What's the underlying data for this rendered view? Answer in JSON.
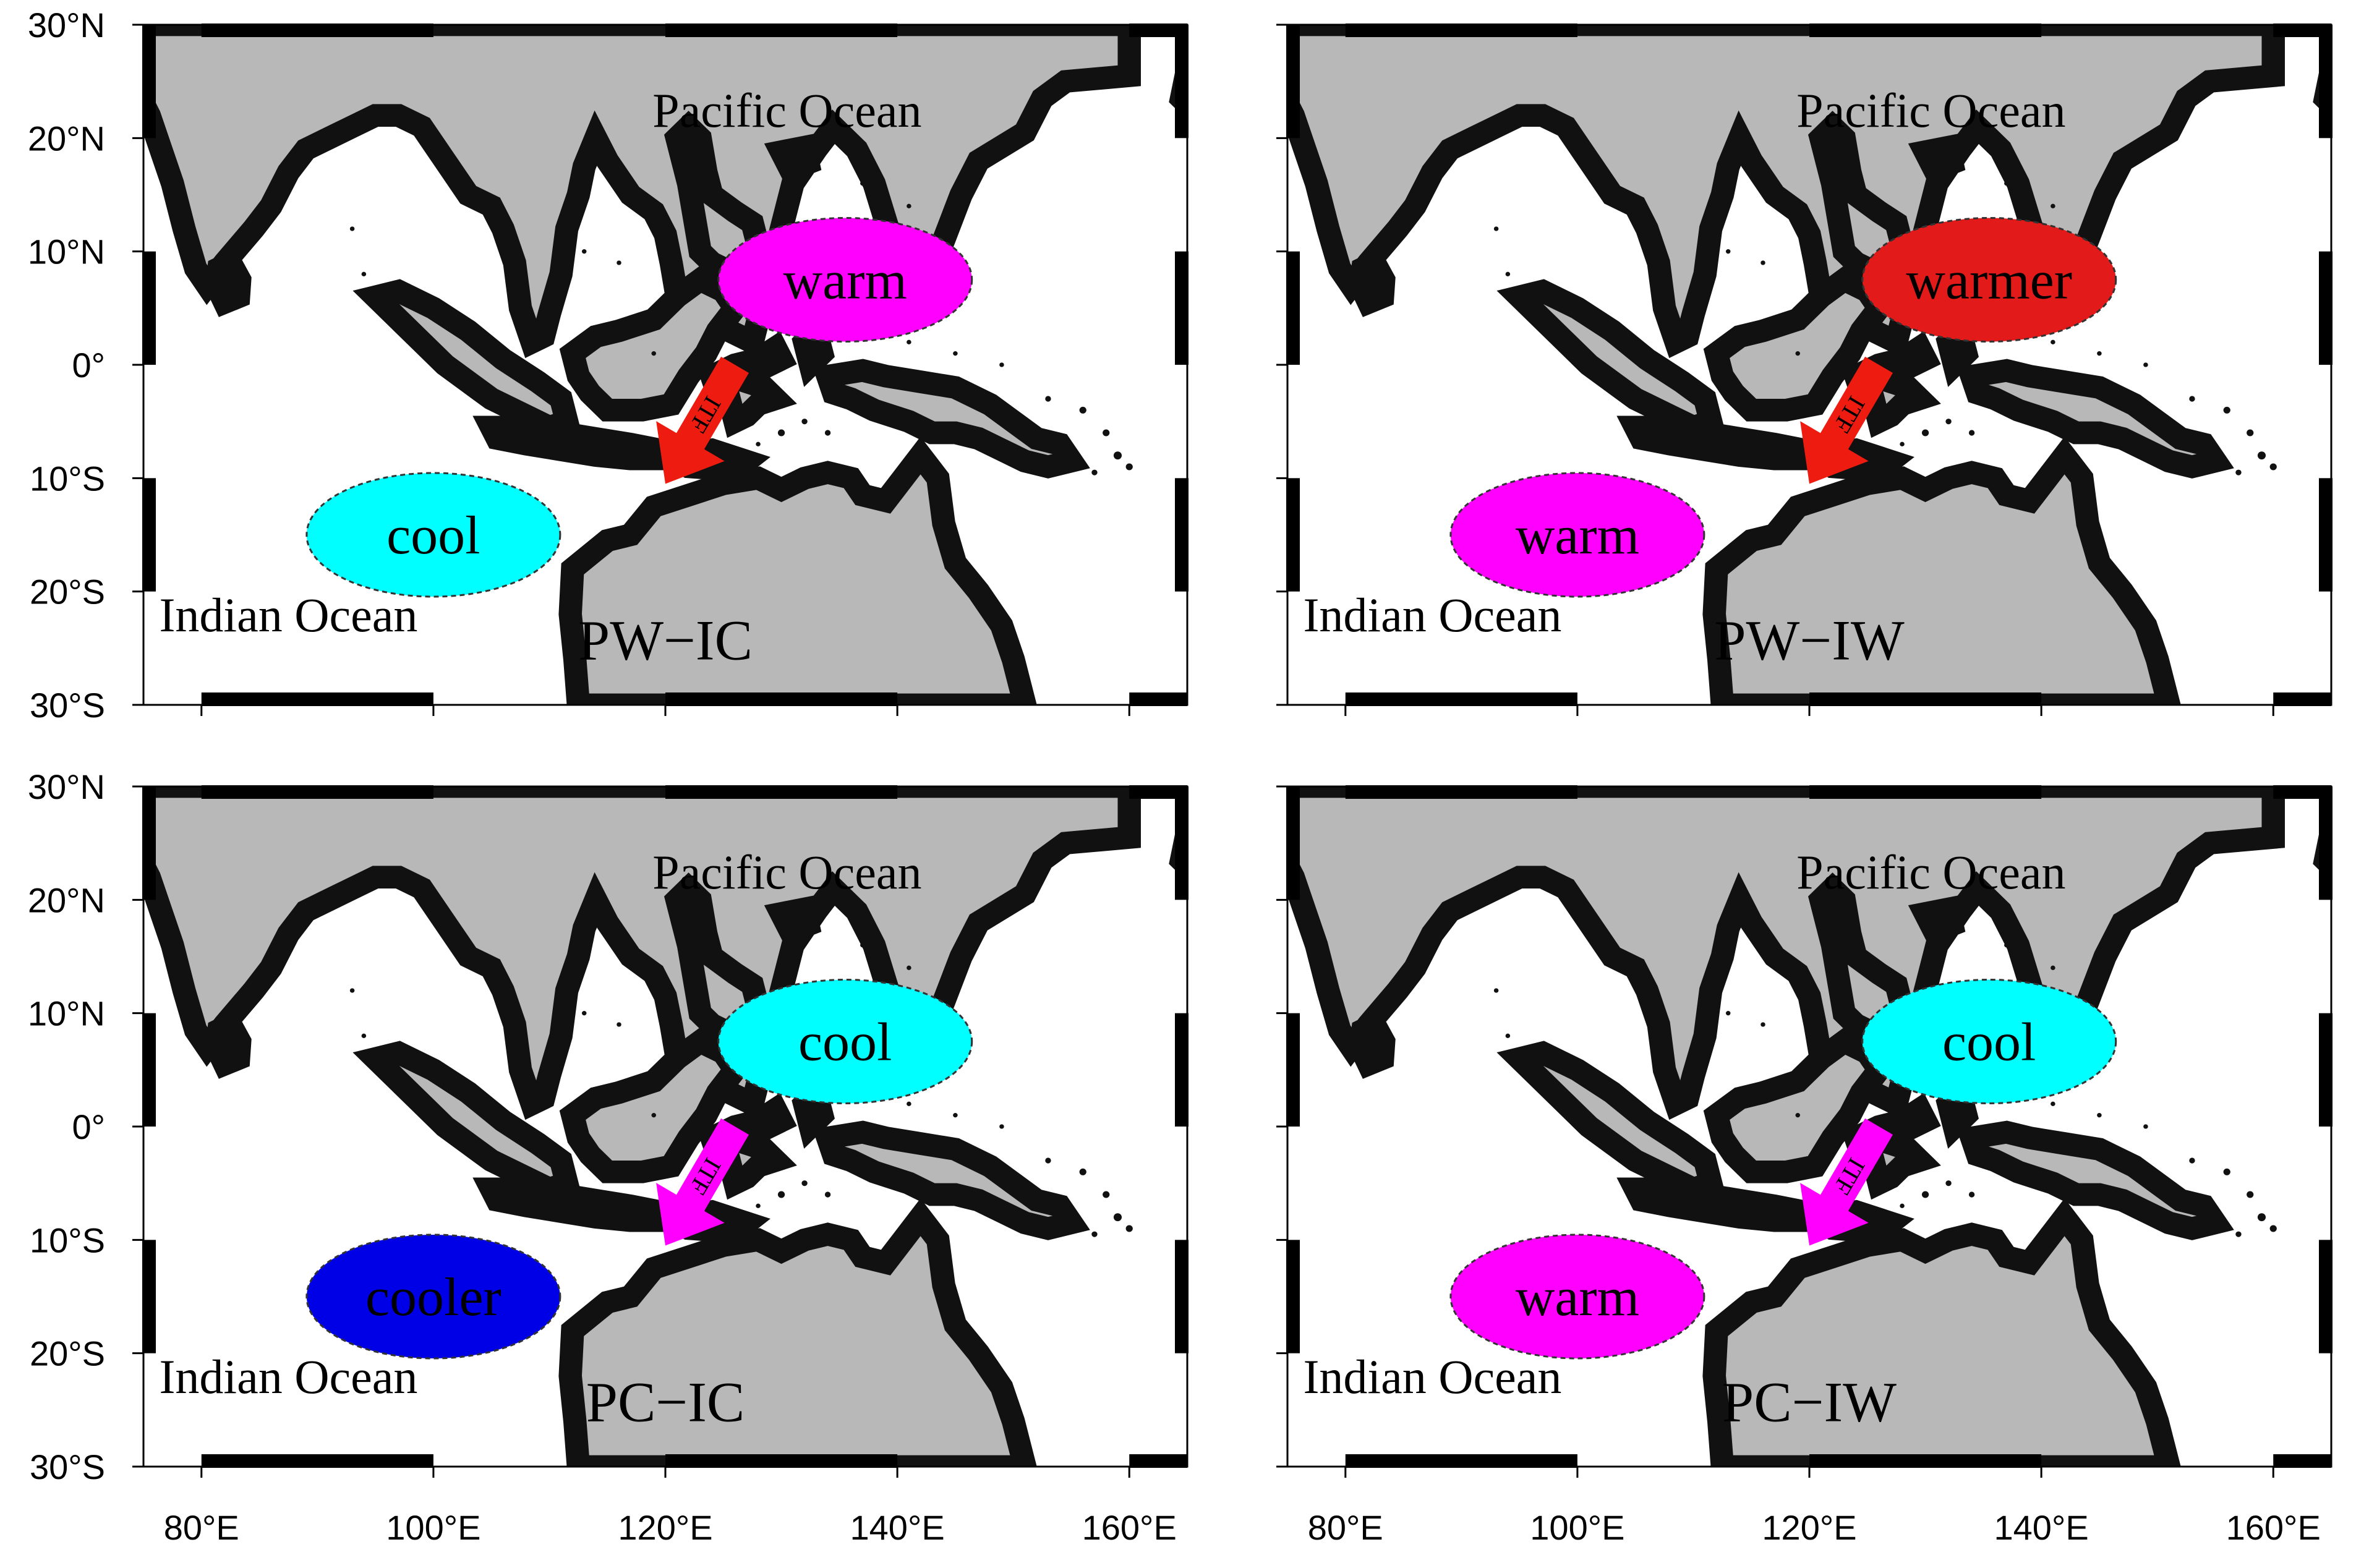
{
  "colors": {
    "land": "#b8b8b8",
    "coastline": "#111111",
    "warm": "#ff00ff",
    "warmer": "#e21a1a",
    "cool": "#00ffff",
    "cooler": "#0000e6",
    "arrow_red": "#ee1c10",
    "arrow_magenta": "#ff00ff"
  },
  "axes": {
    "lat_labels": [
      "30°N",
      "20°N",
      "10°N",
      "0°",
      "10°S",
      "20°S",
      "30°S"
    ],
    "lon_labels": [
      "80°E",
      "100°E",
      "120°E",
      "140°E",
      "160°E"
    ]
  },
  "labels": {
    "pacific": "Pacific Ocean",
    "indian": "Indian Ocean",
    "itf": "ITF"
  },
  "panels": [
    {
      "id": "pw-ic",
      "title": "PW−IC",
      "pacific": {
        "text": "warm",
        "color": "#ff00ff"
      },
      "indian": {
        "text": "cool",
        "color": "#00ffff"
      },
      "arrow_color": "#ee1c10"
    },
    {
      "id": "pw-iw",
      "title": "PW−IW",
      "pacific": {
        "text": "warmer",
        "color": "#e21a1a"
      },
      "indian": {
        "text": "warm",
        "color": "#ff00ff"
      },
      "arrow_color": "#ee1c10"
    },
    {
      "id": "pc-ic",
      "title": "PC−IC",
      "pacific": {
        "text": "cool",
        "color": "#00ffff"
      },
      "indian": {
        "text": "cooler",
        "color": "#0000e6"
      },
      "arrow_color": "#ff00ff"
    },
    {
      "id": "pc-iw",
      "title": "PC−IW",
      "pacific": {
        "text": "cool",
        "color": "#00ffff"
      },
      "indian": {
        "text": "warm",
        "color": "#ff00ff"
      },
      "arrow_color": "#ff00ff"
    }
  ]
}
